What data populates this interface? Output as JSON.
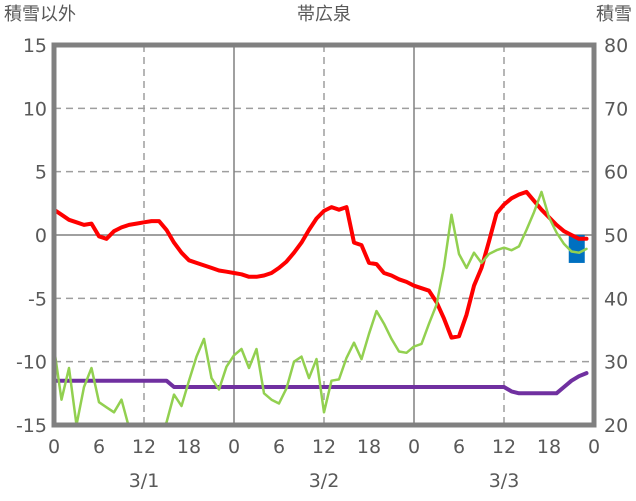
{
  "header": {
    "left_axis_title": "積雪以外",
    "station_title": "帯広泉",
    "right_axis_title": "積雪"
  },
  "chart_data": {
    "type": "line",
    "title": "帯広泉",
    "x_unit": "hours (3 days, hourly observations)",
    "x_range_hours": [
      0,
      72
    ],
    "grid": "solid at day boundaries and 0-line, dashed at 12:00 and every 5 units",
    "legend_position": "none",
    "hour_tick_labels": [
      "0",
      "6",
      "12",
      "18",
      "0",
      "6",
      "12",
      "18",
      "0",
      "6",
      "12",
      "18",
      "0"
    ],
    "date_labels": [
      "3/1",
      "3/2",
      "3/3"
    ],
    "left_axis": {
      "title": "積雪以外",
      "ticks": [
        15,
        10,
        5,
        0,
        -5,
        -10,
        -15
      ],
      "range": [
        -15,
        15
      ]
    },
    "right_axis": {
      "title": "積雪",
      "ticks": [
        80,
        70,
        60,
        50,
        40,
        30,
        20
      ],
      "range": [
        20,
        80
      ]
    },
    "series": [
      {
        "name": "snow-depth-purple",
        "axis": "right",
        "color": "#7030A0",
        "width": 4,
        "values": [
          27,
          27,
          27,
          27,
          27,
          27,
          27,
          27,
          27,
          27,
          27,
          27,
          27,
          27,
          27,
          27,
          26,
          26,
          26,
          26,
          26,
          26,
          26,
          26,
          26,
          26,
          26,
          26,
          26,
          26,
          26,
          26,
          26,
          26,
          26,
          26,
          26,
          26,
          26,
          26,
          26,
          26,
          26,
          26,
          26,
          26,
          26,
          26,
          26,
          26,
          26,
          26,
          26,
          26,
          26,
          26,
          26,
          26,
          26,
          26,
          26,
          25.3,
          25,
          25,
          25,
          25,
          25,
          25,
          26,
          27,
          27.7,
          28.2
        ]
      },
      {
        "name": "temperature-red",
        "axis": "left",
        "color": "#FF0000",
        "width": 4,
        "values": [
          2.0,
          1.6,
          1.2,
          1.0,
          0.8,
          0.9,
          -0.1,
          -0.3,
          0.3,
          0.6,
          0.8,
          0.9,
          1.0,
          1.1,
          1.1,
          0.4,
          -0.6,
          -1.4,
          -2.0,
          -2.2,
          -2.4,
          -2.6,
          -2.8,
          -2.9,
          -3.0,
          -3.1,
          -3.3,
          -3.3,
          -3.2,
          -3.0,
          -2.6,
          -2.1,
          -1.4,
          -0.6,
          0.4,
          1.3,
          1.9,
          2.2,
          2.0,
          2.2,
          -0.6,
          -0.8,
          -2.2,
          -2.3,
          -3.0,
          -3.2,
          -3.5,
          -3.7,
          -4.0,
          -4.2,
          -4.4,
          -5.3,
          -6.6,
          -8.1,
          -8.0,
          -6.3,
          -4.0,
          -2.6,
          -0.5,
          1.7,
          2.4,
          2.9,
          3.2,
          3.4,
          2.7,
          2.0,
          1.4,
          0.8,
          0.3,
          0.0,
          -0.3,
          -0.3
        ]
      },
      {
        "name": "green-series",
        "axis": "left",
        "color": "#92D050",
        "width": 2.5,
        "values": [
          -8.9,
          -13.0,
          -10.5,
          -15.0,
          -12.0,
          -10.5,
          -13.2,
          -13.6,
          -14.0,
          -13.0,
          -15.2,
          -16.5,
          -17.0,
          -16.5,
          -15.6,
          -14.8,
          -12.6,
          -13.5,
          -11.5,
          -9.6,
          -8.2,
          -11.3,
          -12.2,
          -10.4,
          -9.5,
          -9.0,
          -10.5,
          -9.0,
          -12.5,
          -13.0,
          -13.3,
          -12.1,
          -10.0,
          -9.6,
          -11.3,
          -9.8,
          -14.0,
          -11.5,
          -11.4,
          -9.7,
          -8.5,
          -9.8,
          -7.8,
          -6.0,
          -7.0,
          -8.2,
          -9.2,
          -9.3,
          -8.8,
          -8.6,
          -7.0,
          -5.5,
          -2.5,
          1.6,
          -1.5,
          -2.6,
          -1.4,
          -2.2,
          -1.5,
          -1.2,
          -1.0,
          -1.2,
          -0.9,
          0.4,
          1.8,
          3.4,
          1.4,
          0.2,
          -0.7,
          -1.3,
          -1.4,
          -1.1
        ]
      }
    ],
    "marker": {
      "name": "blue-square-marker",
      "color": "#0070C0",
      "hour": 69.7,
      "left_axis_value": -1.1
    }
  },
  "style_colors": {
    "plot_border": "#808080",
    "grid_solid": "#808080",
    "grid_dashed": "#9E9E9E",
    "text": "#595959",
    "background": "#FFFFFF"
  }
}
